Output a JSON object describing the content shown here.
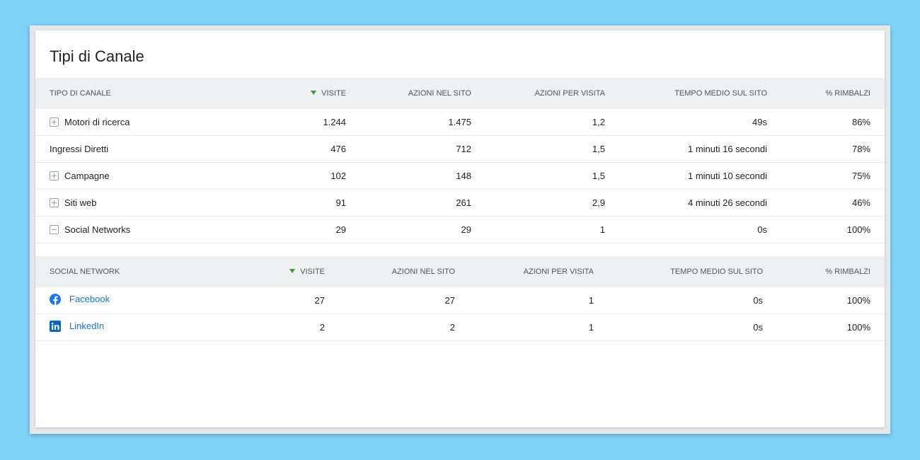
{
  "title": "Tipi di Canale",
  "colors": {
    "accent": "#1a73c8",
    "sort_arrow": "#3c9a3c",
    "background": "#80d2f7"
  },
  "channels": {
    "headers": [
      "TIPO DI CANALE",
      "VISITE",
      "AZIONI NEL SITO",
      "AZIONI PER VISITA",
      "TEMPO MEDIO SUL SITO",
      "% RIMBALZI"
    ],
    "rows": [
      {
        "name": "Motori di ricerca",
        "expand": "plus",
        "values": [
          "1.244",
          "1.475",
          "1,2",
          "49s",
          "86%"
        ]
      },
      {
        "name": "Ingressi Diretti",
        "expand": "none",
        "values": [
          "476",
          "712",
          "1,5",
          "1 minuti 16 secondi",
          "78%"
        ]
      },
      {
        "name": "Campagne",
        "expand": "plus",
        "values": [
          "102",
          "148",
          "1,5",
          "1 minuti 10 secondi",
          "75%"
        ]
      },
      {
        "name": "Siti web",
        "expand": "plus",
        "values": [
          "91",
          "261",
          "2,9",
          "4 minuti 26 secondi",
          "46%"
        ]
      },
      {
        "name": "Social Networks",
        "expand": "minus",
        "values": [
          "29",
          "29",
          "1",
          "0s",
          "100%"
        ]
      }
    ]
  },
  "social": {
    "headers": [
      "SOCIAL NETWORK",
      "VISITE",
      "AZIONI NEL SITO",
      "AZIONI PER VISITA",
      "TEMPO MEDIO SUL SITO",
      "% RIMBALZI"
    ],
    "rows": [
      {
        "name": "Facebook",
        "icon": "facebook-icon",
        "values": [
          "27",
          "27",
          "1",
          "0s",
          "100%"
        ]
      },
      {
        "name": "LinkedIn",
        "icon": "linkedin-icon",
        "values": [
          "2",
          "2",
          "1",
          "0s",
          "100%"
        ]
      }
    ]
  }
}
